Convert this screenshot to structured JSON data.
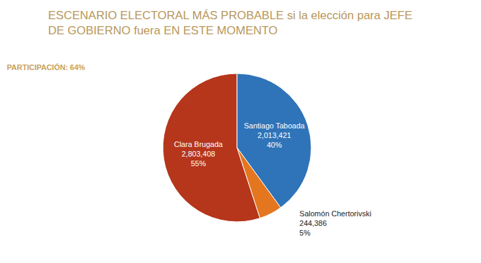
{
  "chart_data": {
    "type": "pie",
    "title": "ESCENARIO ELECTORAL MÁS PROBABLE si la elección para JEFE DE GOBIERNO fuera EN ESTE MOMENTO",
    "annotations": [
      "PARTICIPACIÓN: 64%"
    ],
    "categories": [
      "Clara Brugada",
      "Santiago Taboada",
      "Salomón Chertorivski"
    ],
    "values": [
      55,
      40,
      5
    ],
    "value_labels": [
      "55%",
      "40%",
      "5%"
    ],
    "votes": [
      2803408,
      2013421,
      244386
    ],
    "colors": [
      "#B5361B",
      "#2F73B8",
      "#E4761F"
    ],
    "data_labels": true
  }
}
